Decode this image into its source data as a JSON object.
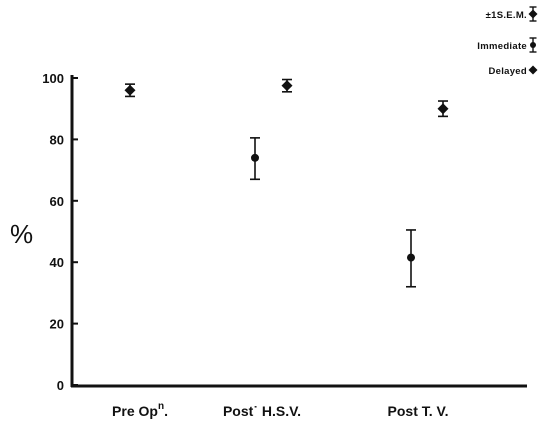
{
  "chart_data": {
    "type": "scatter",
    "title": "",
    "xlabel": "",
    "ylabel": "%",
    "ylim": [
      0,
      100
    ],
    "yticks": [
      0,
      20,
      40,
      60,
      80,
      100
    ],
    "grid": false,
    "legend_position": "top-right",
    "categories": [
      {
        "main": "Pre Op",
        "sup": "n",
        "tail": "."
      },
      {
        "main": "Post˙ H.S.V.",
        "sup": "",
        "tail": ""
      },
      {
        "main": "Post  T. V.",
        "sup": "",
        "tail": ""
      }
    ],
    "legend": [
      {
        "label": "±1S.E.M.",
        "marker": "error-bar"
      },
      {
        "label": "Immediate",
        "marker": "circle"
      },
      {
        "label": "Delayed",
        "marker": "diamond"
      }
    ],
    "series": [
      {
        "name": "Immediate",
        "marker": "circle",
        "points": [
          {
            "category_index": 1,
            "y": 74,
            "err_low": 67,
            "err_high": 80.5
          },
          {
            "category_index": 2,
            "y": 41.5,
            "err_low": 32,
            "err_high": 50.5
          }
        ]
      },
      {
        "name": "Delayed",
        "marker": "diamond",
        "points": [
          {
            "category_index": 0,
            "y": 96,
            "err_low": 94,
            "err_high": 98
          },
          {
            "category_index": 1,
            "y": 97.5,
            "err_low": 95.5,
            "err_high": 99.5
          },
          {
            "category_index": 2,
            "y": 90,
            "err_low": 87.5,
            "err_high": 92.5
          }
        ]
      }
    ]
  }
}
